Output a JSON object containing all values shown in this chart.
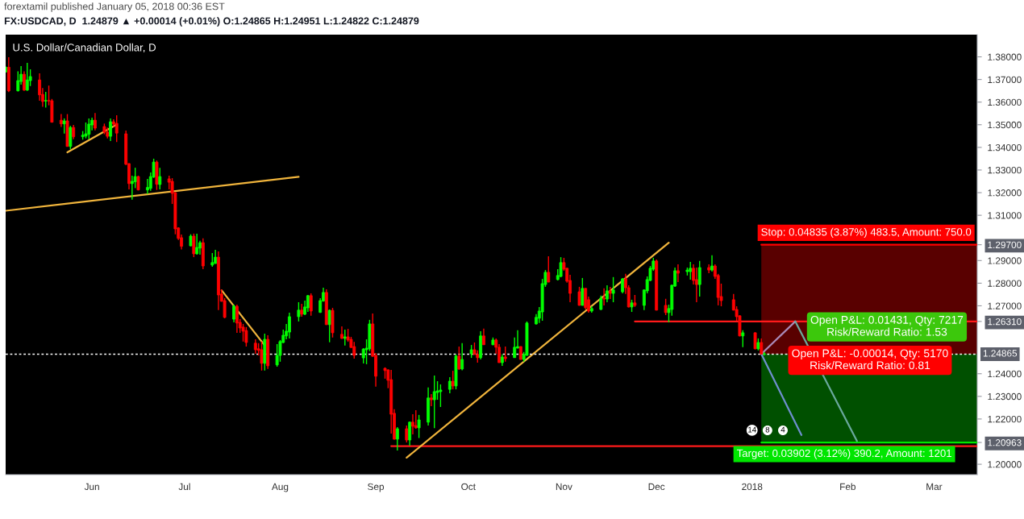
{
  "chart_data": {
    "type": "candlestick",
    "title": "U.S. Dollar/Canadian Dollar, D",
    "subtitle": "FX:USDCAD, D  1.24879 ▲ +0.00014 (+0.01%) O:1.24865 H:1.24951 L:1.24822 C:1.24879",
    "annotations": [
      "forextamil published January 05, 2018 00:36 EST",
      "Stop: 0.04835 (3.87%) 483.5, Amount: 750.0",
      {
        "text": "Target: 0.03902 (3.12%) 390.2, Amount: 1201",
        "x": "2017-12-27",
        "y": 1.20963
      },
      "Open P&L: 0.01431, Qty: 7217\nRisk/Reward Ratio: 1.53",
      "Open P&L: -0.00014, Qty: 5170\nRisk/Reward Ratio: 0.81",
      {
        "text": "8",
        "x": "2018-01-06",
        "y": 1.215
      },
      {
        "text": "14",
        "x": "2018-01-01",
        "y": 1.215
      },
      {
        "text": "4",
        "x": "2018-01-11",
        "y": 1.215
      }
    ],
    "x": [
      "2017-05-04",
      "2017-05-05",
      "2017-05-08",
      "2017-05-09",
      "2017-05-10",
      "2017-05-11",
      "2017-05-12",
      "2017-05-15",
      "2017-05-16",
      "2017-05-17",
      "2017-05-18",
      "2017-05-19",
      "2017-05-22",
      "2017-05-23",
      "2017-05-24",
      "2017-05-25",
      "2017-05-26",
      "2017-05-29",
      "2017-05-30",
      "2017-05-31",
      "2017-06-01",
      "2017-06-02",
      "2017-06-05",
      "2017-06-06",
      "2017-06-07",
      "2017-06-08",
      "2017-06-09",
      "2017-06-12",
      "2017-06-13",
      "2017-06-14",
      "2017-06-15",
      "2017-06-16",
      "2017-06-19",
      "2017-06-20",
      "2017-06-21",
      "2017-06-22",
      "2017-06-23",
      "2017-06-26",
      "2017-06-27",
      "2017-06-28",
      "2017-06-29",
      "2017-06-30",
      "2017-07-03",
      "2017-07-04",
      "2017-07-05",
      "2017-07-06",
      "2017-07-07",
      "2017-07-10",
      "2017-07-11",
      "2017-07-12",
      "2017-07-13",
      "2017-07-14",
      "2017-07-17",
      "2017-07-18",
      "2017-07-19",
      "2017-07-20",
      "2017-07-21",
      "2017-07-24",
      "2017-07-25",
      "2017-07-26",
      "2017-07-27",
      "2017-07-28",
      "2017-07-31",
      "2017-08-01",
      "2017-08-02",
      "2017-08-03",
      "2017-08-04",
      "2017-08-07",
      "2017-08-08",
      "2017-08-09",
      "2017-08-10",
      "2017-08-11",
      "2017-08-14",
      "2017-08-15",
      "2017-08-16",
      "2017-08-17",
      "2017-08-18",
      "2017-08-21",
      "2017-08-22",
      "2017-08-23",
      "2017-08-24",
      "2017-08-25",
      "2017-08-28",
      "2017-08-29",
      "2017-08-30",
      "2017-08-31",
      "2017-09-01",
      "2017-09-04",
      "2017-09-05",
      "2017-09-06",
      "2017-09-07",
      "2017-09-08",
      "2017-09-11",
      "2017-09-12",
      "2017-09-13",
      "2017-09-14",
      "2017-09-15",
      "2017-09-18",
      "2017-09-19",
      "2017-09-20",
      "2017-09-21",
      "2017-09-22",
      "2017-09-25",
      "2017-09-26",
      "2017-09-27",
      "2017-09-28",
      "2017-09-29",
      "2017-10-02",
      "2017-10-03",
      "2017-10-04",
      "2017-10-05",
      "2017-10-06",
      "2017-10-09",
      "2017-10-10",
      "2017-10-11",
      "2017-10-12",
      "2017-10-13",
      "2017-10-16",
      "2017-10-17",
      "2017-10-18",
      "2017-10-19",
      "2017-10-20",
      "2017-10-23",
      "2017-10-24",
      "2017-10-25",
      "2017-10-26",
      "2017-10-27",
      "2017-10-30",
      "2017-10-31",
      "2017-11-01",
      "2017-11-02",
      "2017-11-03",
      "2017-11-06",
      "2017-11-07",
      "2017-11-08",
      "2017-11-09",
      "2017-11-10",
      "2017-11-13",
      "2017-11-14",
      "2017-11-15",
      "2017-11-16",
      "2017-11-17",
      "2017-11-20",
      "2017-11-21",
      "2017-11-22",
      "2017-11-23",
      "2017-11-24",
      "2017-11-27",
      "2017-11-28",
      "2017-11-29",
      "2017-11-30",
      "2017-12-01",
      "2017-12-04",
      "2017-12-05",
      "2017-12-06",
      "2017-12-07",
      "2017-12-08",
      "2017-12-11",
      "2017-12-12",
      "2017-12-13",
      "2017-12-14",
      "2017-12-15",
      "2017-12-18",
      "2017-12-19",
      "2017-12-20",
      "2017-12-21",
      "2017-12-22",
      "2017-12-26",
      "2017-12-27",
      "2017-12-28",
      "2017-12-29",
      "2018-01-02",
      "2018-01-03",
      "2018-01-04",
      "2018-01-05"
    ],
    "ohlc": [
      [
        1.3733,
        1.3757,
        1.3731,
        1.3754
      ],
      [
        1.3754,
        1.3798,
        1.3644,
        1.365
      ],
      [
        1.365,
        1.3736,
        1.3647,
        1.3695
      ],
      [
        1.3691,
        1.3759,
        1.3677,
        1.3723
      ],
      [
        1.3723,
        1.3736,
        1.365,
        1.3653
      ],
      [
        1.3653,
        1.3773,
        1.365,
        1.3698
      ],
      [
        1.3695,
        1.3745,
        1.3671,
        1.3713
      ],
      [
        1.3698,
        1.3727,
        1.3606,
        1.3632
      ],
      [
        1.3634,
        1.3662,
        1.3579,
        1.3603
      ],
      [
        1.3605,
        1.3645,
        1.3576,
        1.3607
      ],
      [
        1.3607,
        1.3673,
        1.3586,
        1.3605
      ],
      [
        1.3606,
        1.3614,
        1.351,
        1.3511
      ],
      [
        1.352,
        1.3547,
        1.349,
        1.3504
      ],
      [
        1.3504,
        1.3528,
        1.3461,
        1.3517
      ],
      [
        1.3517,
        1.3547,
        1.3403,
        1.3404
      ],
      [
        1.3404,
        1.3495,
        1.3392,
        1.3488
      ],
      [
        1.3488,
        1.3499,
        1.3436,
        1.3447
      ],
      [
        1.3447,
        1.3472,
        1.3434,
        1.3454
      ],
      [
        1.345,
        1.351,
        1.344,
        1.346
      ],
      [
        1.3458,
        1.3528,
        1.3436,
        1.3503
      ],
      [
        1.3499,
        1.3531,
        1.3475,
        1.352
      ],
      [
        1.352,
        1.3552,
        1.3475,
        1.3485
      ],
      [
        1.3492,
        1.3505,
        1.3458,
        1.3467
      ],
      [
        1.3467,
        1.3488,
        1.344,
        1.3449
      ],
      [
        1.3449,
        1.3528,
        1.3428,
        1.3513
      ],
      [
        1.3513,
        1.3524,
        1.3493,
        1.3503
      ],
      [
        1.3506,
        1.3542,
        1.3424,
        1.3463
      ],
      [
        1.346,
        1.3474,
        1.3321,
        1.3326
      ],
      [
        1.3328,
        1.333,
        1.3214,
        1.324
      ],
      [
        1.324,
        1.3275,
        1.3169,
        1.325
      ],
      [
        1.3248,
        1.331,
        1.322,
        1.3271
      ],
      [
        1.3271,
        1.3275,
        1.321,
        1.3212
      ],
      [
        1.3212,
        1.3261,
        1.3194,
        1.3223
      ],
      [
        1.3219,
        1.3289,
        1.3208,
        1.3271
      ],
      [
        1.3269,
        1.335,
        1.3265,
        1.3335
      ],
      [
        1.3335,
        1.3342,
        1.3212,
        1.3237
      ],
      [
        1.3236,
        1.331,
        1.3214,
        1.3271
      ],
      [
        1.3261,
        1.3275,
        1.3214,
        1.3246
      ],
      [
        1.325,
        1.3264,
        1.315,
        1.3197
      ],
      [
        1.32,
        1.3202,
        1.3016,
        1.304
      ],
      [
        1.3044,
        1.3047,
        1.2991,
        1.2998
      ],
      [
        1.3001,
        1.3015,
        1.2949,
        1.2963
      ],
      [
        1.2965,
        1.3016,
        1.2963,
        1.3008
      ],
      [
        1.3008,
        1.3019,
        1.2915,
        1.293
      ],
      [
        1.293,
        1.3019,
        1.2926,
        1.2958
      ],
      [
        1.2955,
        1.2987,
        1.2926,
        1.2979
      ],
      [
        1.2979,
        1.2998,
        1.2862,
        1.2876
      ],
      [
        1.288,
        1.2933,
        1.2873,
        1.2891
      ],
      [
        1.2887,
        1.2947,
        1.2886,
        1.2915
      ],
      [
        1.2915,
        1.294,
        1.2681,
        1.2748
      ],
      [
        1.2752,
        1.2773,
        1.2719,
        1.272
      ],
      [
        1.2723,
        1.2734,
        1.2645,
        1.2649
      ],
      [
        1.2641,
        1.2705,
        1.2627,
        1.2698
      ],
      [
        1.2698,
        1.2705,
        1.2581,
        1.2624
      ],
      [
        1.2627,
        1.2641,
        1.2581,
        1.2602
      ],
      [
        1.2606,
        1.262,
        1.2542,
        1.2588
      ],
      [
        1.2591,
        1.2606,
        1.252,
        1.2538
      ],
      [
        1.2535,
        1.2552,
        1.2488,
        1.2506
      ],
      [
        1.251,
        1.2535,
        1.2481,
        1.2503
      ],
      [
        1.2506,
        1.2542,
        1.2414,
        1.2446
      ],
      [
        1.2446,
        1.2577,
        1.2414,
        1.2552
      ],
      [
        1.2552,
        1.257,
        1.2421,
        1.2435
      ],
      [
        1.2439,
        1.2531,
        1.2431,
        1.2481
      ],
      [
        1.2481,
        1.2549,
        1.2453,
        1.2542
      ],
      [
        1.2538,
        1.2595,
        1.2535,
        1.257
      ],
      [
        1.2567,
        1.262,
        1.2552,
        1.2588
      ],
      [
        1.2584,
        1.267,
        1.2556,
        1.2652
      ],
      [
        1.2652,
        1.2716,
        1.2631,
        1.2681
      ],
      [
        1.2681,
        1.2709,
        1.2652,
        1.2663
      ],
      [
        1.2663,
        1.2723,
        1.2659,
        1.2695
      ],
      [
        1.2691,
        1.2748,
        1.2673,
        1.2745
      ],
      [
        1.2745,
        1.2755,
        1.2656,
        1.2677
      ],
      [
        1.2671,
        1.2734,
        1.2669,
        1.2723
      ],
      [
        1.2721,
        1.278,
        1.2719,
        1.2759
      ],
      [
        1.2759,
        1.2773,
        1.2615,
        1.2617
      ],
      [
        1.2617,
        1.2684,
        1.2539,
        1.268
      ],
      [
        1.268,
        1.2691,
        1.256,
        1.2581
      ],
      [
        1.2574,
        1.2609,
        1.2554,
        1.2556
      ],
      [
        1.2556,
        1.2595,
        1.2525,
        1.2563
      ],
      [
        1.2563,
        1.2598,
        1.2541,
        1.2549
      ],
      [
        1.2552,
        1.2563,
        1.2514,
        1.2516
      ],
      [
        1.252,
        1.2541,
        1.2467,
        1.2481
      ],
      [
        1.247,
        1.2513,
        1.2445,
        1.2509
      ],
      [
        1.2506,
        1.2552,
        1.2442,
        1.2513
      ],
      [
        1.251,
        1.2638,
        1.25,
        1.262
      ],
      [
        1.262,
        1.2666,
        1.2475,
        1.2477
      ],
      [
        1.2481,
        1.2492,
        1.2343,
        1.2389
      ],
      [
        1.2424,
        1.2428,
        1.2378,
        1.2414
      ],
      [
        1.2417,
        1.2419,
        1.2336,
        1.2371
      ],
      [
        1.2374,
        1.2417,
        1.2136,
        1.2221
      ],
      [
        1.2225,
        1.2243,
        1.2109,
        1.2111
      ],
      [
        1.2111,
        1.2164,
        1.2061,
        1.2157
      ],
      [
        1.2157,
        1.2171,
        1.2096,
        1.2107
      ],
      [
        1.2107,
        1.2189,
        1.2082,
        1.2186
      ],
      [
        1.2186,
        1.2221,
        1.2132,
        1.2168
      ],
      [
        1.2171,
        1.2239,
        1.2157,
        1.2161
      ],
      [
        1.2161,
        1.2218,
        1.2116,
        1.2196
      ],
      [
        1.2186,
        1.2339,
        1.2171,
        1.2293
      ],
      [
        1.2293,
        1.231,
        1.2257,
        1.2285
      ],
      [
        1.2285,
        1.2392,
        1.216,
        1.2321
      ],
      [
        1.2317,
        1.2367,
        1.2285,
        1.2324
      ],
      [
        1.2321,
        1.2353,
        1.2253,
        1.2328
      ],
      [
        1.2331,
        1.2385,
        1.2314,
        1.2367
      ],
      [
        1.2367,
        1.2413,
        1.2331,
        1.2346
      ],
      [
        1.2346,
        1.2485,
        1.2331,
        1.2478
      ],
      [
        1.2478,
        1.252,
        1.2417,
        1.2421
      ],
      [
        1.2421,
        1.2535,
        1.2415,
        1.2463
      ],
      [
        1.2488,
        1.2527,
        1.247,
        1.2506
      ],
      [
        1.2506,
        1.2538,
        1.2484,
        1.2485
      ],
      [
        1.2485,
        1.2503,
        1.2449,
        1.2471
      ],
      [
        1.2471,
        1.2588,
        1.2463,
        1.2567
      ],
      [
        1.2567,
        1.2599,
        1.2527,
        1.2528
      ],
      [
        1.2528,
        1.256,
        1.2526,
        1.2549
      ],
      [
        1.2549,
        1.2556,
        1.2488,
        1.2517
      ],
      [
        1.2517,
        1.2531,
        1.2448,
        1.2449
      ],
      [
        1.2449,
        1.2485,
        1.2435,
        1.2474
      ],
      [
        1.2474,
        1.252,
        1.2453,
        1.2467
      ],
      [
        1.2471,
        1.256,
        1.247,
        1.2517
      ],
      [
        1.2513,
        1.2592,
        1.2512,
        1.252
      ],
      [
        1.252,
        1.2521,
        1.2462,
        1.2463
      ],
      [
        1.2463,
        1.2496,
        1.2453,
        1.2485
      ],
      [
        1.2481,
        1.2631,
        1.248,
        1.2624
      ],
      [
        1.262,
        1.2663,
        1.2617,
        1.2649
      ],
      [
        1.2645,
        1.2695,
        1.2624,
        1.2677
      ],
      [
        1.2673,
        1.2819,
        1.2634,
        1.2798
      ],
      [
        1.2794,
        1.2858,
        1.2784,
        1.2848
      ],
      [
        1.2848,
        1.2919,
        1.2804,
        1.2805
      ],
      [
        1.2816,
        1.2862,
        1.2812,
        1.2834
      ],
      [
        1.283,
        1.2915,
        1.2826,
        1.2891
      ],
      [
        1.2891,
        1.2912,
        1.2855,
        1.2862
      ],
      [
        1.2866,
        1.2867,
        1.2802,
        1.2809
      ],
      [
        1.2812,
        1.2837,
        1.2716,
        1.2755
      ],
      [
        1.2762,
        1.2784,
        1.2701,
        1.2702
      ],
      [
        1.2702,
        1.2823,
        1.2701,
        1.2777
      ],
      [
        1.2777,
        1.2778,
        1.2684,
        1.2692
      ],
      [
        1.2727,
        1.2741,
        1.267,
        1.2677
      ],
      [
        1.2677,
        1.2698,
        1.267,
        1.2688
      ],
      [
        1.2684,
        1.2745,
        1.2681,
        1.2734
      ],
      [
        1.2734,
        1.2777,
        1.2702,
        1.273
      ],
      [
        1.273,
        1.2791,
        1.2716,
        1.2766
      ],
      [
        1.2766,
        1.2784,
        1.273,
        1.2755
      ],
      [
        1.2755,
        1.2827,
        1.2716,
        1.277
      ],
      [
        1.2762,
        1.2823,
        1.2755,
        1.2819
      ],
      [
        1.2819,
        1.2841,
        1.2752,
        1.278
      ],
      [
        1.278,
        1.2791,
        1.2693,
        1.2695
      ],
      [
        1.2695,
        1.2727,
        1.2673,
        1.2713
      ],
      [
        1.2713,
        1.2748,
        1.2695,
        1.2702
      ],
      [
        1.2702,
        1.2773,
        1.2681,
        1.277
      ],
      [
        1.2766,
        1.283,
        1.2755,
        1.2816
      ],
      [
        1.2812,
        1.2876,
        1.2809,
        1.2866
      ],
      [
        1.2862,
        1.2912,
        1.2855,
        1.2898
      ],
      [
        1.2898,
        1.2905,
        1.2679,
        1.2681
      ],
      [
        1.2702,
        1.2731,
        1.2659,
        1.267
      ],
      [
        1.267,
        1.2705,
        1.2627,
        1.2688
      ],
      [
        1.2684,
        1.2793,
        1.2656,
        1.2791
      ],
      [
        1.2787,
        1.2869,
        1.2784,
        1.2855
      ],
      [
        1.2855,
        1.2883,
        1.2805,
        1.2844
      ],
      [
        1.2851,
        1.2869,
        1.2834,
        1.2858
      ],
      [
        1.2851,
        1.2894,
        1.2816,
        1.2866
      ],
      [
        1.2866,
        1.2883,
        1.2794,
        1.2812
      ],
      [
        1.2816,
        1.2869,
        1.2716,
        1.2794
      ],
      [
        1.2794,
        1.2898,
        1.2741,
        1.2869
      ],
      [
        1.2869,
        1.2883,
        1.2844,
        1.2858
      ],
      [
        1.2858,
        1.2923,
        1.2851,
        1.2876
      ],
      [
        1.2876,
        1.2883,
        1.2819,
        1.283
      ],
      [
        1.2834,
        1.2841,
        1.2702,
        1.2737
      ],
      [
        1.2741,
        1.2798,
        1.2698,
        1.2723
      ],
      [
        1.2727,
        1.2752,
        1.2679,
        1.2681
      ],
      [
        1.2684,
        1.2698,
        1.2634,
        1.2652
      ],
      [
        1.2656,
        1.2658,
        1.2565,
        1.2567
      ],
      [
        1.2567,
        1.2592,
        1.2517,
        1.2581
      ],
      [
        1.2581,
        1.2583,
        1.2508,
        1.251
      ],
      [
        1.251,
        1.2556,
        1.2503,
        1.2538
      ],
      [
        1.2538,
        1.2556,
        1.2486,
        1.2487
      ],
      [
        1.24865,
        1.24951,
        1.24822,
        1.24879
      ]
    ],
    "colors": [
      "#00ff00",
      "#ff0000",
      "#00ff00",
      "#00ff00",
      "#ff0000",
      "#00ff00",
      "#00ff00",
      "#ff0000",
      "#ff0000",
      "#00ff00",
      "#ff0000",
      "#ff0000",
      "#ff0000",
      "#00ff00",
      "#ff0000",
      "#00ff00",
      "#ff0000",
      "#00ff00",
      "#00ff00",
      "#00ff00",
      "#00ff00",
      "#ff0000",
      "#ff0000",
      "#ff0000",
      "#00ff00",
      "#ff0000",
      "#ff0000",
      "#ff0000",
      "#ff0000",
      "#00ff00",
      "#00ff00",
      "#ff0000",
      "#00ff00",
      "#00ff00",
      "#00ff00",
      "#ff0000",
      "#00ff00",
      "#ff0000",
      "#ff0000",
      "#ff0000",
      "#ff0000",
      "#ff0000",
      "#00ff00",
      "#ff0000",
      "#00ff00",
      "#00ff00",
      "#ff0000",
      "#00ff00",
      "#00ff00",
      "#ff0000",
      "#ff0000",
      "#ff0000",
      "#00ff00",
      "#ff0000",
      "#ff0000",
      "#ff0000",
      "#ff0000",
      "#ff0000",
      "#ff0000",
      "#ff0000",
      "#00ff00",
      "#ff0000",
      "#00ff00",
      "#00ff00",
      "#00ff00",
      "#00ff00",
      "#00ff00",
      "#00ff00",
      "#ff0000",
      "#00ff00",
      "#00ff00",
      "#ff0000",
      "#00ff00",
      "#00ff00",
      "#ff0000",
      "#00ff00",
      "#ff0000",
      "#ff0000",
      "#00ff00",
      "#ff0000",
      "#ff0000",
      "#ff0000",
      "#00ff00",
      "#00ff00",
      "#00ff00",
      "#ff0000",
      "#ff0000",
      "#ff0000",
      "#ff0000",
      "#ff0000",
      "#ff0000",
      "#00ff00",
      "#ff0000",
      "#00ff00",
      "#ff0000",
      "#ff0000",
      "#00ff00",
      "#00ff00",
      "#ff0000",
      "#00ff00",
      "#00ff00",
      "#00ff00",
      "#00ff00",
      "#ff0000",
      "#00ff00",
      "#ff0000",
      "#00ff00",
      "#00ff00",
      "#ff0000",
      "#ff0000",
      "#00ff00",
      "#ff0000",
      "#00ff00",
      "#ff0000",
      "#ff0000",
      "#00ff00",
      "#ff0000",
      "#00ff00",
      "#00ff00",
      "#ff0000",
      "#00ff00",
      "#00ff00",
      "#00ff00",
      "#00ff00",
      "#00ff00",
      "#00ff00",
      "#ff0000",
      "#00ff00",
      "#00ff00",
      "#ff0000",
      "#ff0000",
      "#ff0000",
      "#ff0000",
      "#00ff00",
      "#ff0000",
      "#ff0000",
      "#00ff00",
      "#00ff00",
      "#ff0000",
      "#00ff00",
      "#ff0000",
      "#00ff00",
      "#00ff00",
      "#ff0000",
      "#ff0000",
      "#00ff00",
      "#ff0000",
      "#00ff00",
      "#00ff00",
      "#00ff00",
      "#00ff00",
      "#ff0000",
      "#ff0000",
      "#00ff00",
      "#00ff00",
      "#00ff00",
      "#ff0000",
      "#00ff00",
      "#00ff00",
      "#ff0000",
      "#ff0000",
      "#00ff00",
      "#ff0000",
      "#00ff00",
      "#ff0000",
      "#ff0000",
      "#ff0000",
      "#ff0000",
      "#ff0000",
      "#ff0000",
      "#00ff00",
      "#ff0000",
      "#00ff00",
      "#ff0000",
      "#00ff00"
    ],
    "series": [
      {
        "type": "line",
        "x": [
          "2018-01-04",
          "2018-03-15"
        ],
        "values": [
          1.297,
          1.297
        ],
        "lower": [
          1.24865,
          1.24865
        ],
        "upper": [
          1.297,
          1.297
        ],
        "color": "#ff0000"
      },
      {
        "type": "line",
        "x": [
          "2018-01-04",
          "2018-03-15"
        ],
        "values": [
          1.20963,
          1.20963
        ],
        "lower": [
          1.20963,
          1.20963
        ],
        "upper": [
          1.24865,
          1.24865
        ],
        "color": "#00e600"
      },
      {
        "type": "line",
        "x": [
          "2017-11-24",
          "2018-03-15"
        ],
        "values": [
          1.2631,
          1.2631
        ],
        "color": "#ff1a1a"
      },
      {
        "type": "line",
        "x": [
          "2017-09-06",
          "2018-03-15"
        ],
        "values": [
          1.208,
          1.208
        ],
        "color": "#ff1a1a"
      },
      {
        "type": "line",
        "x": [
          "2017-05-24",
          "2017-06-09"
        ],
        "values": [
          1.3378,
          1.3501
        ],
        "color": "#f0b43c"
      },
      {
        "type": "line",
        "x": [
          "2017-05-04",
          "2017-08-07"
        ],
        "values": [
          1.312,
          1.327
        ],
        "color": "#f0b43c"
      },
      {
        "type": "line",
        "x": [
          "2017-07-13",
          "2017-07-27"
        ],
        "values": [
          1.2769,
          1.2525
        ],
        "color": "#f0b43c"
      },
      {
        "type": "line",
        "x": [
          "2017-09-11",
          "2017-12-05"
        ],
        "values": [
          1.2029,
          1.2979
        ],
        "color": "#f0b43c"
      },
      {
        "type": "line",
        "x": [
          "2018-01-04",
          "2018-01-15"
        ],
        "values": [
          1.2487,
          1.2631
        ],
        "color": "#a98ab8"
      },
      {
        "type": "line",
        "x": [
          "2018-01-04",
          "2018-01-17"
        ],
        "values": [
          1.2487,
          1.2129
        ],
        "color": "#6f8fcf"
      },
      {
        "type": "line",
        "x": [
          "2018-01-15",
          "2018-02-04"
        ],
        "values": [
          1.2631,
          1.2103
        ],
        "color": "#6aa89d"
      }
    ],
    "ref_lines": [
      {
        "axis": "y",
        "value": 1.24865,
        "label": "1.24865",
        "color": "#ffffff",
        "line_style": "dotted"
      }
    ],
    "xlim": [
      "2017-05-04",
      "2018-03-15"
    ],
    "xticks": [
      {
        "value": "2017-06-01",
        "label": "Jun"
      },
      {
        "value": "2017-07-01",
        "label": "Jul"
      },
      {
        "value": "2017-08-01",
        "label": "Aug"
      },
      {
        "value": "2017-09-01",
        "label": "Sep"
      },
      {
        "value": "2017-10-01",
        "label": "Oct"
      },
      {
        "value": "2017-11-01",
        "label": "Nov"
      },
      {
        "value": "2017-12-01",
        "label": "Dec"
      },
      {
        "value": "2018-01-01",
        "label": "2018"
      },
      {
        "value": "2018-02-01",
        "label": "Feb"
      },
      {
        "value": "2018-03-01",
        "label": "Mar"
      }
    ],
    "ylim": [
      1.1954,
      1.3898
    ],
    "yticks": [
      {
        "value": 1.2,
        "label": "1.20000"
      },
      {
        "value": 1.20963,
        "label": "1.20963"
      },
      {
        "value": 1.22,
        "label": "1.22000"
      },
      {
        "value": 1.23,
        "label": "1.23000"
      },
      {
        "value": 1.24,
        "label": "1.24000"
      },
      {
        "value": 1.2631,
        "label": "1.26310"
      },
      {
        "value": 1.27,
        "label": "1.27000"
      },
      {
        "value": 1.28,
        "label": "1.28000"
      },
      {
        "value": 1.29,
        "label": "1.29000"
      },
      {
        "value": 1.297,
        "label": "1.29700"
      },
      {
        "value": 1.31,
        "label": "1.31000"
      },
      {
        "value": 1.32,
        "label": "1.32000"
      },
      {
        "value": 1.33,
        "label": "1.33000"
      },
      {
        "value": 1.34,
        "label": "1.34000"
      },
      {
        "value": 1.35,
        "label": "1.35000"
      },
      {
        "value": 1.36,
        "label": "1.36000"
      },
      {
        "value": 1.37,
        "label": "1.37000"
      },
      {
        "value": 1.38,
        "label": "1.38000"
      }
    ]
  }
}
